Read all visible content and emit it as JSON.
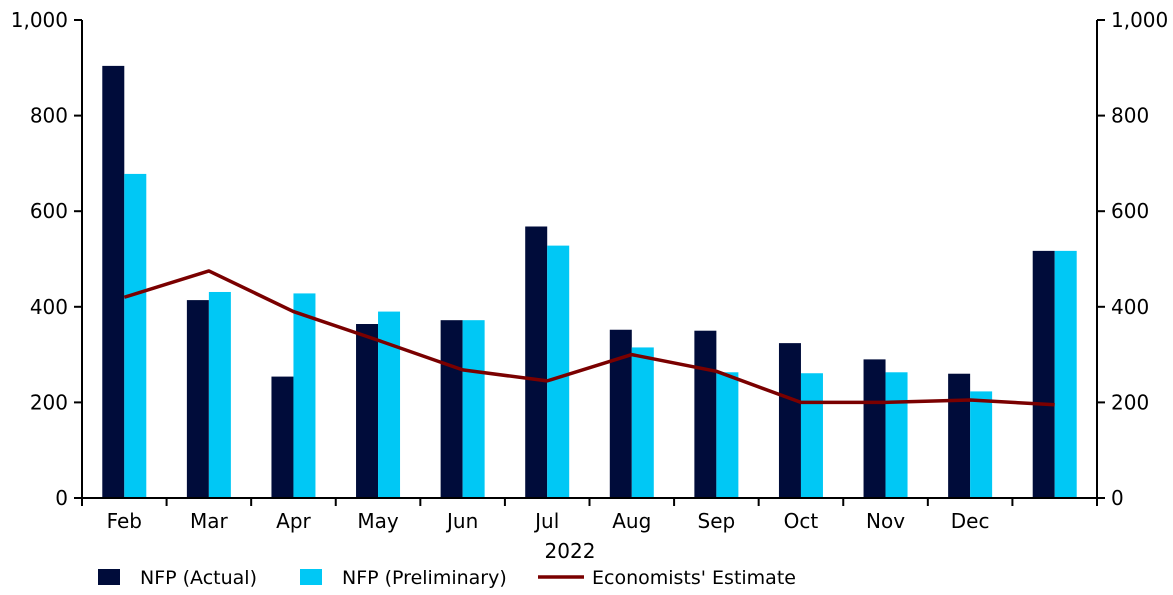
{
  "chart_data": {
    "type": "bar",
    "categories": [
      "Feb",
      "Mar",
      "Apr",
      "May",
      "Jun",
      "Jul",
      "Aug",
      "Sep",
      "Oct",
      "Nov",
      "Dec",
      ""
    ],
    "year_label": "2022",
    "series": [
      {
        "name": "NFP (Actual)",
        "type": "bar",
        "color": "#000c3a",
        "values": [
          904,
          414,
          254,
          364,
          372,
          568,
          352,
          350,
          324,
          290,
          260,
          517
        ]
      },
      {
        "name": "NFP (Preliminary)",
        "type": "bar",
        "color": "#00c8f5",
        "values": [
          678,
          431,
          428,
          390,
          372,
          528,
          315,
          263,
          261,
          263,
          223,
          517
        ]
      },
      {
        "name": "Economists' Estimate",
        "type": "line",
        "color": "#7a0000",
        "values": [
          420,
          475,
          390,
          330,
          268,
          245,
          300,
          265,
          200,
          200,
          205,
          195
        ]
      }
    ],
    "ylim": [
      0,
      1000
    ],
    "y_ticks": [
      0,
      200,
      400,
      600,
      800,
      1000
    ],
    "y_tick_labels": [
      "0",
      "200",
      "400",
      "600",
      "800",
      "1,000"
    ],
    "y2_tick_labels": [
      "0",
      "200",
      "400",
      "600",
      "800",
      "1,000"
    ],
    "legend_position": "bottom",
    "grid": false
  }
}
